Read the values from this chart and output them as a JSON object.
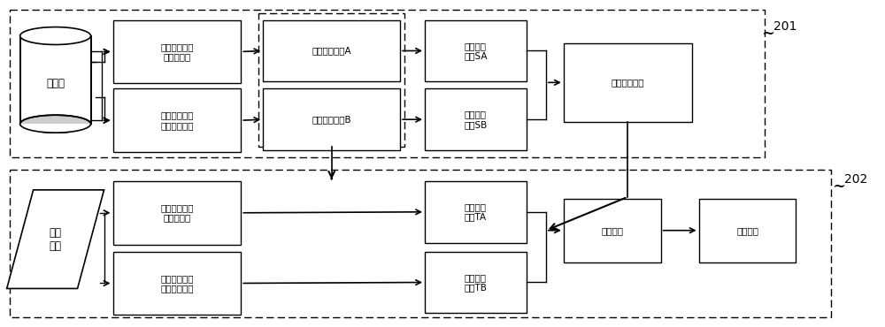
{
  "bg_color": "#ffffff",
  "box_color": "#ffffff",
  "box_edge_color": "#000000",
  "text_color": "#000000",
  "font_size": 7.5,
  "label_201": "201",
  "label_202": "202",
  "top_section_label": "训练集",
  "top_box1a": "基于镜面反射\n的人脸特征",
  "top_box1b": "基于关键点变\n化的人脸特征",
  "top_box2a": "活体检测模型A",
  "top_box2b": "活体检测模型B",
  "top_box3a": "活体检测\n得分SA",
  "top_box3b": "活体检测\n得分SB",
  "top_box4": "得分融合策略",
  "bot_section_label": "用户\n输入",
  "bot_box1a": "基于镜面反射\n的人脸特征",
  "bot_box1b": "基于关键点变\n化的人脸特征",
  "bot_box2a": "活体检测\n得分TA",
  "bot_box2b": "活体检测\n得分TB",
  "bot_box3": "得分融合",
  "bot_box4": "活体判别"
}
